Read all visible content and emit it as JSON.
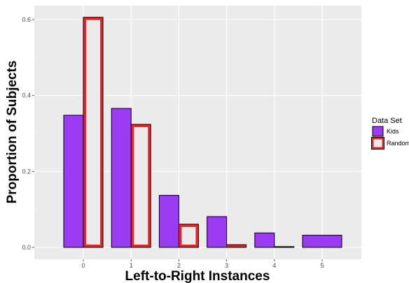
{
  "chart_data": {
    "type": "bar",
    "categories": [
      "0",
      "1",
      "2",
      "3",
      "4",
      "5"
    ],
    "xlabel": "Left-to-Right Instances",
    "ylabel": "Proportion of Subjects",
    "ylim": [
      -0.03,
      0.63
    ],
    "yticks": [
      "0.0",
      "0.2",
      "0.4",
      "0.6"
    ],
    "grid": true,
    "legend": {
      "title": "Data Set",
      "placement": "right"
    },
    "series": [
      {
        "name": "Kids",
        "color": "#9B3BF2",
        "values": [
          0.348,
          0.366,
          0.137,
          0.081,
          0.038,
          0.032
        ]
      },
      {
        "name": "Random",
        "color": "#E8262A",
        "values": [
          0.606,
          0.324,
          0.061,
          0.007,
          0.002,
          null
        ]
      }
    ]
  }
}
